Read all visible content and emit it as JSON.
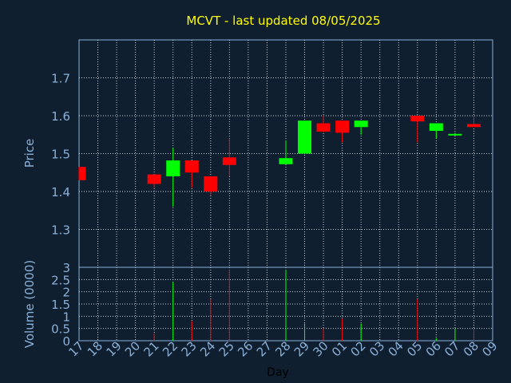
{
  "chart_data": {
    "type": "candlestick",
    "title": "MCVT - last updated 08/05/2025",
    "xlabel": "Day",
    "price_axis": {
      "label": "Price",
      "ylim": [
        1.2,
        1.8
      ],
      "ticks": [
        "1.3",
        "1.4",
        "1.5",
        "1.6",
        "1.7"
      ]
    },
    "volume_axis": {
      "label": "Volume (0000)",
      "ylim": [
        0,
        3
      ],
      "ticks": [
        "0",
        "0.5",
        "1",
        "1.5",
        "2",
        "2.5",
        "3"
      ]
    },
    "x_tick_labels": [
      "17",
      "18",
      "19",
      "20",
      "21",
      "22",
      "23",
      "24",
      "25",
      "26",
      "27",
      "28",
      "29",
      "30",
      "01",
      "02",
      "03",
      "04",
      "05",
      "06",
      "07",
      "08",
      "09"
    ],
    "grid": true,
    "colors": {
      "up": "#00ff00",
      "down": "#ff0000",
      "background": "#0f1f30",
      "plot_bg": "#0f1f30",
      "title": "#ffff00",
      "axis_text": "#8ab0d8",
      "frame": "#8ab0d8",
      "grid": "#c8d0d8"
    },
    "candles": [
      {
        "day": "17",
        "open": 1.465,
        "close": 1.43,
        "high": 1.465,
        "low": 1.43,
        "volume": 0.0
      },
      {
        "day": "21",
        "open": 1.445,
        "close": 1.42,
        "high": 1.445,
        "low": 1.41,
        "volume": 0.3
      },
      {
        "day": "22",
        "open": 1.44,
        "close": 1.482,
        "high": 1.515,
        "low": 1.36,
        "volume": 2.4
      },
      {
        "day": "23",
        "open": 1.482,
        "close": 1.45,
        "high": 1.482,
        "low": 1.41,
        "volume": 0.8
      },
      {
        "day": "24",
        "open": 1.44,
        "close": 1.4,
        "high": 1.44,
        "low": 1.39,
        "volume": 1.7
      },
      {
        "day": "25",
        "open": 1.49,
        "close": 1.47,
        "high": 1.54,
        "low": 1.44,
        "volume": 2.9
      },
      {
        "day": "28",
        "open": 1.472,
        "close": 1.488,
        "high": 1.535,
        "low": 1.472,
        "volume": 2.9
      },
      {
        "day": "29",
        "open": 1.5,
        "close": 1.587,
        "high": 1.587,
        "low": 1.5,
        "volume": 0.7
      },
      {
        "day": "30",
        "open": 1.58,
        "close": 1.558,
        "high": 1.6,
        "low": 1.555,
        "volume": 0.5
      },
      {
        "day": "01",
        "open": 1.587,
        "close": 1.555,
        "high": 1.587,
        "low": 1.53,
        "volume": 0.9
      },
      {
        "day": "02",
        "open": 1.57,
        "close": 1.587,
        "high": 1.587,
        "low": 1.55,
        "volume": 0.7
      },
      {
        "day": "05",
        "open": 1.6,
        "close": 1.585,
        "high": 1.6,
        "low": 1.53,
        "volume": 1.7
      },
      {
        "day": "06",
        "open": 1.56,
        "close": 1.58,
        "high": 1.58,
        "low": 1.54,
        "volume": 0.1
      },
      {
        "day": "07",
        "open": 1.548,
        "close": 1.552,
        "high": 1.555,
        "low": 1.548,
        "volume": 0.5
      },
      {
        "day": "08",
        "open": 1.578,
        "close": 1.57,
        "high": 1.6,
        "low": 1.57,
        "volume": 0.5
      }
    ]
  }
}
